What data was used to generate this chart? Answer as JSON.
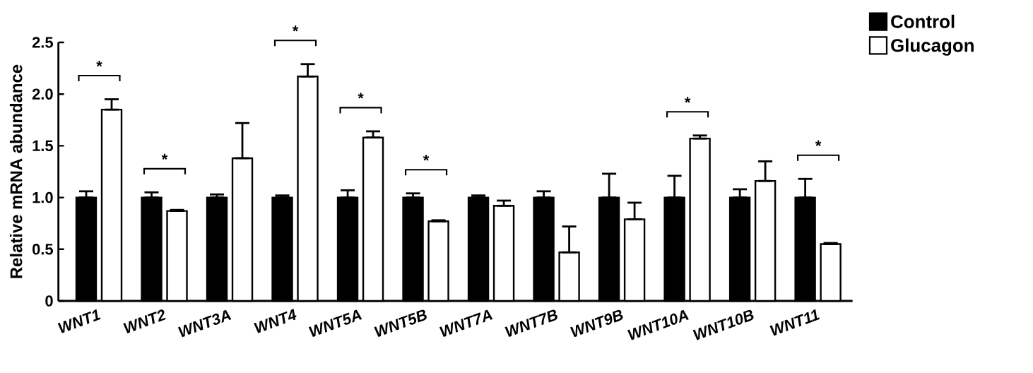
{
  "chart_data": {
    "type": "bar",
    "ylabel": "Relative mRNA abundance",
    "categories": [
      "WNT1",
      "WNT2",
      "WNT3A",
      "WNT4",
      "WNT5A",
      "WNT5B",
      "WNT7A",
      "WNT7B",
      "WNT9B",
      "WNT10A",
      "WNT10B",
      "WNT11"
    ],
    "series": [
      {
        "name": "Control",
        "color": "#000000",
        "values": [
          1.0,
          1.0,
          1.0,
          1.0,
          1.0,
          1.0,
          1.0,
          1.0,
          1.0,
          1.0,
          1.0,
          1.0
        ],
        "errors": [
          [
            1.0,
            1.06
          ],
          [
            1.0,
            1.05
          ],
          [
            1.0,
            1.03
          ],
          [
            1.0,
            1.02
          ],
          [
            1.0,
            1.07
          ],
          [
            1.0,
            1.04
          ],
          [
            1.0,
            1.02
          ],
          [
            1.0,
            1.06
          ],
          [
            1.0,
            1.23
          ],
          [
            1.0,
            1.21
          ],
          [
            1.0,
            1.08
          ],
          [
            1.0,
            1.18
          ]
        ]
      },
      {
        "name": "Glucagon",
        "color": "#ffffff",
        "values": [
          1.85,
          0.87,
          1.38,
          2.17,
          1.58,
          0.77,
          0.92,
          0.47,
          0.79,
          1.57,
          1.16,
          0.55
        ],
        "errors": [
          [
            1.85,
            1.95
          ],
          [
            0.87,
            0.88
          ],
          [
            1.38,
            1.72
          ],
          [
            2.17,
            2.29
          ],
          [
            1.58,
            1.64
          ],
          [
            0.77,
            0.78
          ],
          [
            0.92,
            0.97
          ],
          [
            0.47,
            0.72
          ],
          [
            0.79,
            0.95
          ],
          [
            1.57,
            1.6
          ],
          [
            1.16,
            1.35
          ],
          [
            0.55,
            0.56
          ]
        ]
      }
    ],
    "ylim": [
      0,
      2.5
    ],
    "yticks": [
      0,
      0.5,
      {
        "value": 1,
        "label": "1.0"
      },
      {
        "value": 1.5,
        "label": "1.5"
      },
      {
        "value": 2,
        "label": "2.0"
      },
      2.5
    ],
    "legend": "top right",
    "grid": false,
    "annotations": [
      "*",
      "*",
      "*",
      "*",
      "*",
      "*",
      "*"
    ]
  }
}
